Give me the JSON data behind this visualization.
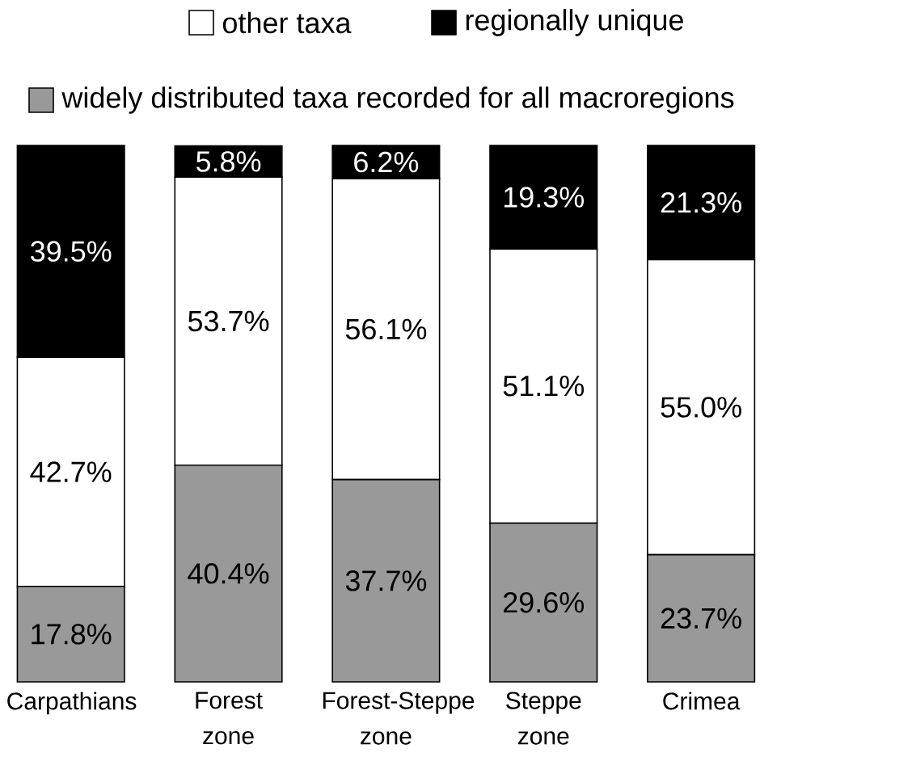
{
  "chart_data": {
    "type": "bar",
    "stacked": true,
    "legend": "top",
    "categories": [
      "Carpathians",
      "Forest zone",
      "Forest-Steppe zone",
      "Steppe zone",
      "Crimea"
    ],
    "series": [
      {
        "name": "widely distributed taxa recorded for all macroregions",
        "color": "#999999",
        "values": [
          17.8,
          40.4,
          37.7,
          29.6,
          23.7
        ],
        "value_labels": [
          "17.8%",
          "40.4%",
          "37.7%",
          "29.6%",
          "23.7%"
        ]
      },
      {
        "name": "other taxa",
        "color": "#ffffff",
        "values": [
          42.7,
          53.7,
          56.1,
          51.1,
          55.0
        ],
        "value_labels": [
          "42.7%",
          "53.7%",
          "56.1%",
          "51.1%",
          "55.0%"
        ]
      },
      {
        "name": "regionally unique",
        "color": "#000000",
        "values": [
          39.5,
          5.8,
          6.2,
          19.3,
          21.3
        ],
        "value_labels": [
          "39.5%",
          "5.8%",
          "6.2%",
          "19.3%",
          "21.3%"
        ]
      }
    ]
  }
}
